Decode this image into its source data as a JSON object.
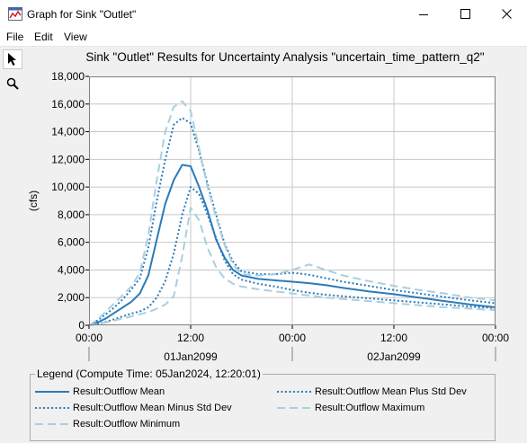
{
  "window": {
    "title": "Graph for Sink \"Outlet\""
  },
  "menu": {
    "file": "File",
    "edit": "Edit",
    "view": "View"
  },
  "toolbar": {
    "tools": [
      "pointer-icon",
      "zoom-icon"
    ]
  },
  "chart_data": {
    "type": "line",
    "title": "Sink \"Outlet\" Results for Uncertainty Analysis \"uncertain_time_pattern_q2\"",
    "ylabel": "(cfs)",
    "xlabel": "",
    "ylim": [
      0,
      18000
    ],
    "xlim": [
      0,
      48
    ],
    "y_ticks": [
      "0",
      "2,000",
      "4,000",
      "6,000",
      "8,000",
      "10,000",
      "12,000",
      "14,000",
      "16,000",
      "18,000"
    ],
    "y_tick_values": [
      0,
      2000,
      4000,
      6000,
      8000,
      10000,
      12000,
      14000,
      16000,
      18000
    ],
    "x_ticks": [
      "00:00",
      "12:00",
      "00:00",
      "12:00",
      "00:00"
    ],
    "x_tick_values": [
      0,
      12,
      24,
      36,
      48
    ],
    "date_labels": [
      {
        "text": "01Jan2099",
        "x": 12
      },
      {
        "text": "02Jan2099",
        "x": 36
      }
    ],
    "grid": true,
    "x": [
      0,
      1,
      2,
      3,
      4,
      5,
      6,
      7,
      8,
      9,
      10,
      11,
      12,
      13,
      14,
      15,
      16,
      17,
      18,
      20,
      22,
      24,
      26,
      28,
      30,
      33,
      36,
      39,
      42,
      45,
      48
    ],
    "series": [
      {
        "name": "Result:Outflow Mean",
        "style": "solid",
        "color": "#2b7bb9",
        "values": [
          0,
          200,
          500,
          900,
          1300,
          1700,
          2300,
          3600,
          6200,
          8800,
          10500,
          11600,
          11500,
          10000,
          8300,
          6200,
          4900,
          4000,
          3600,
          3350,
          3250,
          3150,
          3050,
          2900,
          2700,
          2450,
          2250,
          2000,
          1750,
          1500,
          1300
        ]
      },
      {
        "name": "Result:Outflow Mean Plus Std Dev",
        "style": "dotted",
        "color": "#2b7bb9",
        "values": [
          0,
          350,
          800,
          1300,
          1900,
          2600,
          3400,
          5600,
          9000,
          12000,
          14500,
          15000,
          14600,
          12600,
          10200,
          8000,
          5900,
          4600,
          3900,
          3700,
          3700,
          3800,
          3650,
          3400,
          3150,
          2850,
          2550,
          2300,
          2050,
          1800,
          1600
        ]
      },
      {
        "name": "Result:Outflow Mean Minus Std Dev",
        "style": "dotted",
        "color": "#2b7bb9",
        "values": [
          0,
          100,
          250,
          450,
          650,
          850,
          1000,
          1300,
          2000,
          3200,
          5200,
          8000,
          10000,
          9500,
          8000,
          6300,
          4700,
          3700,
          3300,
          3000,
          2800,
          2550,
          2350,
          2200,
          2100,
          1950,
          1800,
          1650,
          1500,
          1350,
          1250
        ]
      },
      {
        "name": "Result:Outflow Maximum",
        "style": "dashed",
        "color": "#a9cfe0",
        "values": [
          0,
          400,
          1000,
          1600,
          2200,
          2800,
          3800,
          6500,
          10500,
          14000,
          15800,
          16200,
          15500,
          12800,
          10000,
          7800,
          5800,
          4400,
          3700,
          3600,
          3700,
          4000,
          4400,
          4000,
          3600,
          3200,
          2850,
          2550,
          2300,
          2000,
          1800
        ]
      },
      {
        "name": "Result:Outflow Minimum",
        "style": "dashed",
        "color": "#a9cfe0",
        "values": [
          0,
          80,
          200,
          350,
          500,
          650,
          800,
          950,
          1200,
          1500,
          2100,
          5000,
          8500,
          7600,
          5600,
          4200,
          3400,
          3000,
          2800,
          2600,
          2450,
          2300,
          2150,
          2000,
          1900,
          1750,
          1600,
          1450,
          1300,
          1200,
          1100
        ]
      }
    ]
  },
  "legend": {
    "title": "Legend (Compute Time: 05Jan2024, 12:20:01)",
    "items": [
      {
        "label": "Result:Outflow Mean",
        "style": "solid",
        "color": "#2b7bb9"
      },
      {
        "label": "Result:Outflow Mean Plus Std Dev",
        "style": "dotted",
        "color": "#2b7bb9"
      },
      {
        "label": "Result:Outflow Mean Minus Std Dev",
        "style": "dotted",
        "color": "#2b7bb9"
      },
      {
        "label": "Result:Outflow Maximum",
        "style": "dashed",
        "color": "#a9cfe0"
      },
      {
        "label": "Result:Outflow Minimum",
        "style": "dashed",
        "color": "#a9cfe0"
      }
    ]
  }
}
